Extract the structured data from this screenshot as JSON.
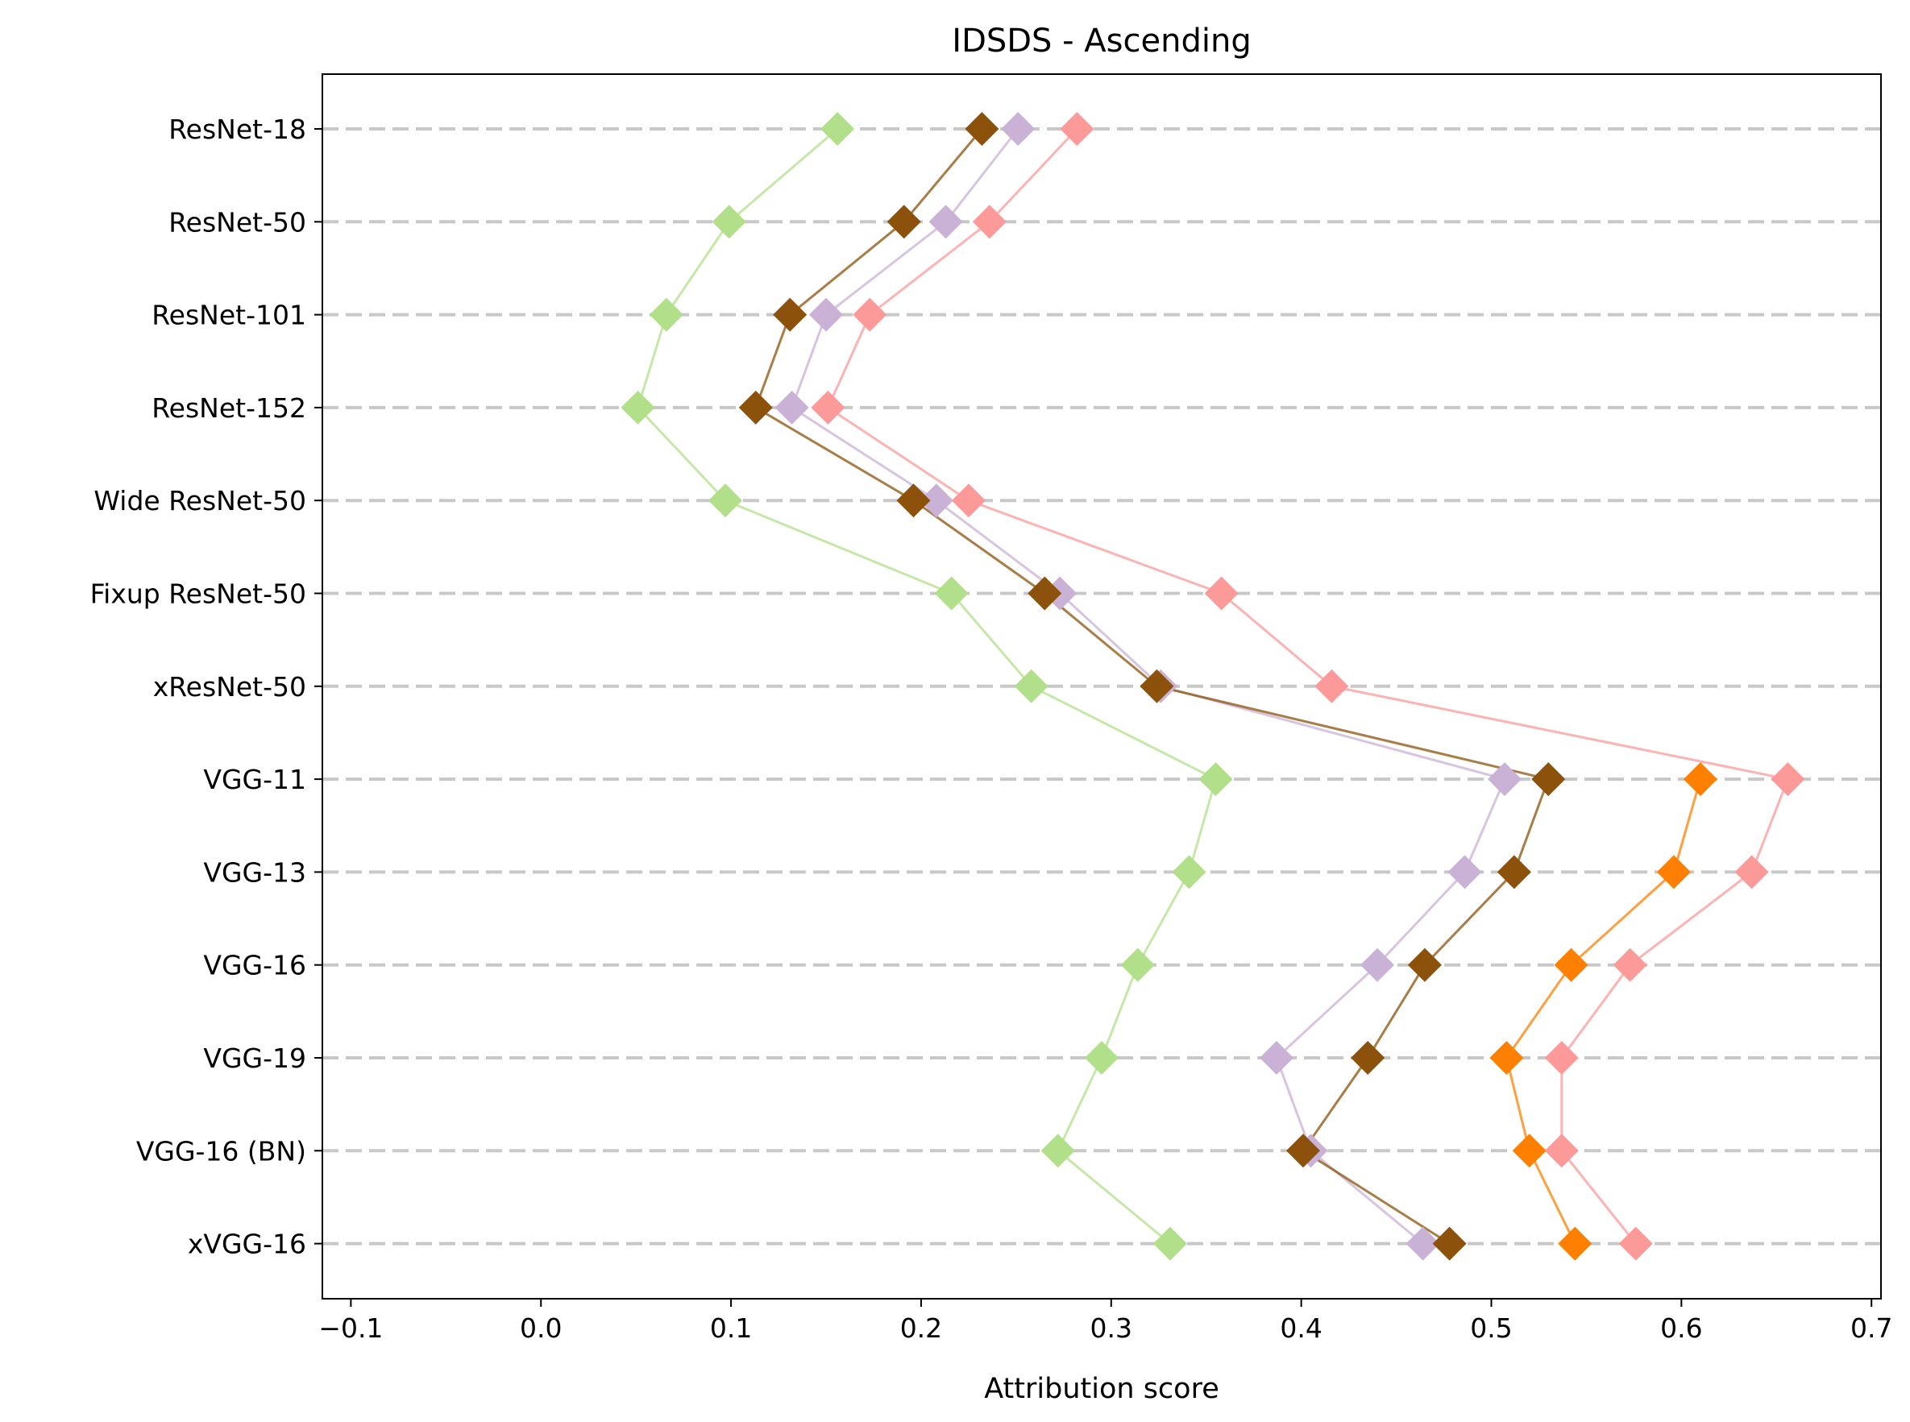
{
  "chart_data": {
    "type": "scatter",
    "title": "IDSDS - Ascending",
    "xlabel": "Attribution score",
    "ylabel": "",
    "xlim": [
      -0.115,
      0.705
    ],
    "xticks": [
      -0.1,
      0.0,
      0.1,
      0.2,
      0.3,
      0.4,
      0.5,
      0.6,
      0.7
    ],
    "xtick_labels": [
      "−0.1",
      "0.0",
      "0.1",
      "0.2",
      "0.3",
      "0.4",
      "0.5",
      "0.6",
      "0.7"
    ],
    "grid": "horizontal dashed",
    "marker": "diamond",
    "categories": [
      "ResNet-18",
      "ResNet-50",
      "ResNet-101",
      "ResNet-152",
      "Wide ResNet-50",
      "Fixup ResNet-50",
      "xResNet-50",
      "VGG-11",
      "VGG-13",
      "VGG-16",
      "VGG-19",
      "VGG-16 (BN)",
      "xVGG-16"
    ],
    "series": [
      {
        "color": "#b2df8a",
        "values": [
          0.156,
          0.099,
          0.066,
          0.051,
          0.097,
          0.216,
          0.258,
          0.355,
          0.341,
          0.314,
          0.295,
          0.272,
          0.331
        ]
      },
      {
        "color": "#cab2d6",
        "values": [
          0.251,
          0.213,
          0.15,
          0.132,
          0.208,
          0.273,
          0.326,
          0.507,
          0.486,
          0.44,
          0.387,
          0.405,
          0.464
        ]
      },
      {
        "color": "#8c510a",
        "values": [
          0.232,
          0.191,
          0.131,
          0.113,
          0.196,
          0.265,
          0.324,
          0.53,
          0.512,
          0.465,
          0.435,
          0.401,
          0.478
        ]
      },
      {
        "color": "#ff7f00",
        "values": [
          null,
          null,
          null,
          null,
          null,
          null,
          null,
          0.61,
          0.596,
          0.542,
          0.508,
          0.52,
          0.544
        ]
      },
      {
        "color": "#fb9a99",
        "values": [
          0.282,
          0.236,
          0.173,
          0.151,
          0.225,
          0.358,
          0.416,
          0.656,
          0.637,
          0.573,
          0.537,
          0.537,
          0.576
        ]
      }
    ]
  }
}
